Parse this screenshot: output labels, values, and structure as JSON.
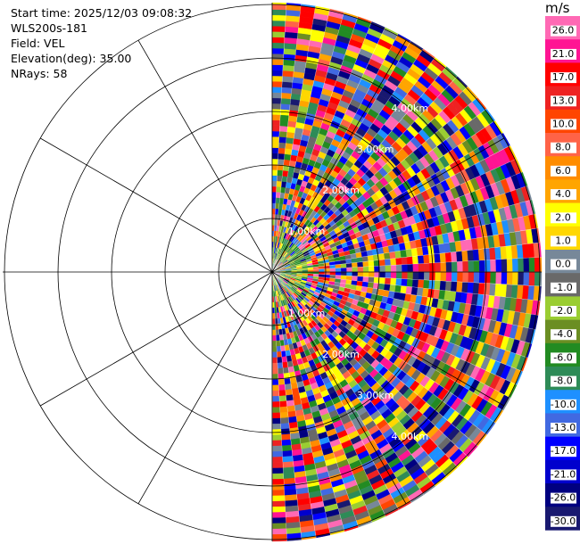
{
  "info": {
    "start_time": "Start time: 2025/12/03 09:08:32",
    "site": "WLS200s-181",
    "field": "Field: VEL",
    "elevation": "Elevation(deg): 35.00",
    "nrays": "NRays: 58"
  },
  "chart_data": {
    "type": "heatmap",
    "subtype": "polar-ppi",
    "field": "VEL",
    "ring_labels": [
      "1.00km",
      "2.00km",
      "3.00km",
      "4.00km"
    ],
    "colorbar": {
      "unit": "m/s",
      "ticks": [
        "26.0",
        "21.0",
        "17.0",
        "13.0",
        "10.0",
        "8.0",
        "6.0",
        "4.0",
        "2.0",
        "1.0",
        "0.0",
        "-1.0",
        "-2.0",
        "-4.0",
        "-6.0",
        "-8.0",
        "-10.0",
        "-13.0",
        "-17.0",
        "-21.0",
        "-26.0",
        "-30.0"
      ],
      "colors": [
        "#ff69b4",
        "#ff1493",
        "#ff0000",
        "#ee2222",
        "#ff4500",
        "#ff6347",
        "#ff8c00",
        "#ffa500",
        "#ffff00",
        "#ffd700",
        "#778899",
        "#696969",
        "#9acd32",
        "#6b8e23",
        "#228b22",
        "#2e8b57",
        "#1e90ff",
        "#4169e1",
        "#0000ff",
        "#0000cd",
        "#000080",
        "#191970"
      ]
    },
    "azimuth_coverage_deg": [
      0,
      180
    ],
    "n_rays": 58
  }
}
